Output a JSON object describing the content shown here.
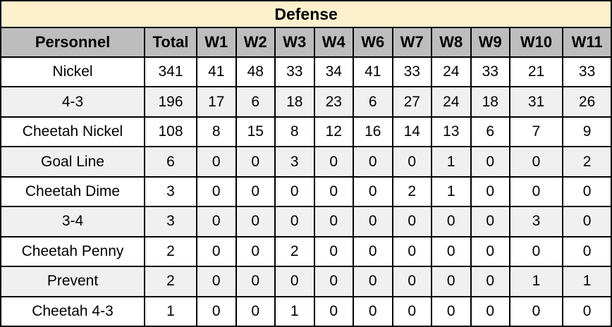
{
  "colors": {
    "title_bg": "#FCF1CC",
    "header_bg": "#BDBDBD",
    "stripe_bg": "#F0F0F0",
    "row_bg": "#FFFFFF",
    "border": "#000000",
    "text": "#000000"
  },
  "chart_data": {
    "type": "table",
    "title": "Defense",
    "columns": [
      "Personnel",
      "Total",
      "W1",
      "W2",
      "W3",
      "W4",
      "W6",
      "W7",
      "W8",
      "W9",
      "W10",
      "W11"
    ],
    "rows": [
      {
        "personnel": "Nickel",
        "values": [
          341,
          41,
          48,
          33,
          34,
          41,
          33,
          24,
          33,
          21,
          33
        ]
      },
      {
        "personnel": "4-3",
        "values": [
          196,
          17,
          6,
          18,
          23,
          6,
          27,
          24,
          18,
          31,
          26
        ]
      },
      {
        "personnel": "Cheetah Nickel",
        "values": [
          108,
          8,
          15,
          8,
          12,
          16,
          14,
          13,
          6,
          7,
          9
        ]
      },
      {
        "personnel": "Goal Line",
        "values": [
          6,
          0,
          0,
          3,
          0,
          0,
          0,
          1,
          0,
          0,
          2
        ]
      },
      {
        "personnel": "Cheetah Dime",
        "values": [
          3,
          0,
          0,
          0,
          0,
          0,
          2,
          1,
          0,
          0,
          0
        ]
      },
      {
        "personnel": "3-4",
        "values": [
          3,
          0,
          0,
          0,
          0,
          0,
          0,
          0,
          0,
          3,
          0
        ]
      },
      {
        "personnel": "Cheetah Penny",
        "values": [
          2,
          0,
          0,
          2,
          0,
          0,
          0,
          0,
          0,
          0,
          0
        ]
      },
      {
        "personnel": "Prevent",
        "values": [
          2,
          0,
          0,
          0,
          0,
          0,
          0,
          0,
          0,
          1,
          1
        ]
      },
      {
        "personnel": "Cheetah 4-3",
        "values": [
          1,
          0,
          0,
          1,
          0,
          0,
          0,
          0,
          0,
          0,
          0
        ]
      }
    ],
    "layout": {
      "striped_rows": "even data rows (4-3, Goal Line, 3-4, Prevent)",
      "grid": true
    }
  }
}
